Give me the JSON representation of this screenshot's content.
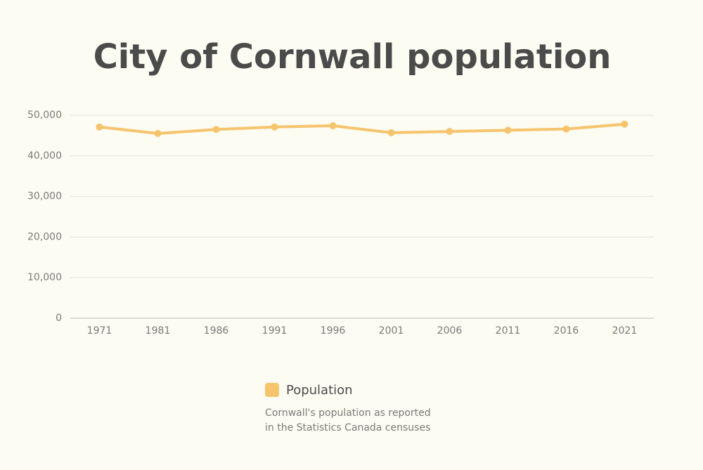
{
  "chart_data": {
    "type": "line",
    "title": "City of Cornwall population",
    "categories": [
      "1971",
      "1981",
      "1986",
      "1991",
      "1996",
      "2001",
      "2006",
      "2011",
      "2016",
      "2021"
    ],
    "series": [
      {
        "name": "Population",
        "color": "#f6c46d",
        "values": [
          47100,
          45500,
          46500,
          47100,
          47400,
          45700,
          46000,
          46300,
          46600,
          47800
        ]
      }
    ],
    "ylim": [
      0,
      50000
    ],
    "yticks": [
      0,
      {
        "value": 10000,
        "label": "10,000"
      },
      {
        "value": 20000,
        "label": "20,000"
      },
      {
        "value": 30000,
        "label": "30,000"
      },
      {
        "value": 40000,
        "label": "40,000"
      },
      {
        "value": 50000,
        "label": "50,000"
      }
    ],
    "grid": true,
    "caption": [
      "Cornwall's population as reported",
      "in the Statistics Canada censuses"
    ]
  }
}
